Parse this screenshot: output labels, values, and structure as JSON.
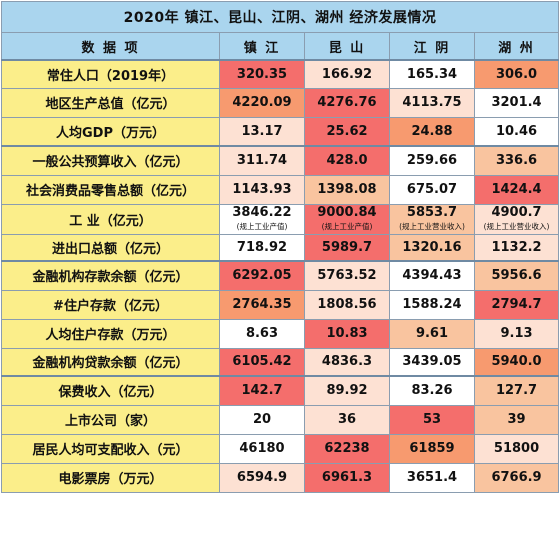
{
  "title": "2020年 镇江、昆山、江阴、湖州 经济发展情况",
  "header": {
    "item": "数 据 项",
    "cities": [
      "镇 江",
      "昆 山",
      "江 阴",
      "湖 州"
    ]
  },
  "colors": {
    "header_bg": "#aad5ee",
    "label_bg": "#fbee8a",
    "scale": [
      "#ffffff",
      "#fde1d3",
      "#f9c49f",
      "#f79a6f",
      "#f46e6c"
    ]
  },
  "rows": [
    {
      "label": "常住人口（2019年）",
      "values": [
        "320.35",
        "166.92",
        "165.34",
        "306.0"
      ],
      "shade": [
        4,
        1,
        0,
        3
      ]
    },
    {
      "label": "地区生产总值（亿元）",
      "values": [
        "4220.09",
        "4276.76",
        "4113.75",
        "3201.4"
      ],
      "shade": [
        3,
        4,
        1,
        0
      ]
    },
    {
      "label": "人均GDP（万元）",
      "values": [
        "13.17",
        "25.62",
        "24.88",
        "10.46"
      ],
      "shade": [
        1,
        4,
        3,
        0
      ]
    },
    {
      "label": "一般公共预算收入（亿元）",
      "values": [
        "311.74",
        "428.0",
        "259.66",
        "336.6"
      ],
      "shade": [
        1,
        4,
        0,
        2
      ]
    },
    {
      "label": "社会消费品零售总额（亿元）",
      "values": [
        "1143.93",
        "1398.08",
        "675.07",
        "1424.4"
      ],
      "shade": [
        1,
        2,
        0,
        4
      ]
    },
    {
      "label": "工 业（亿元）",
      "values": [
        "3846.22",
        "9000.84",
        "5853.7",
        "4900.7"
      ],
      "notes": [
        "(规上工业产值)",
        "(规上工业产值)",
        "(规上工业营业收入)",
        "(规上工业营业收入)"
      ],
      "shade": [
        0,
        4,
        2,
        1
      ]
    },
    {
      "label": "进出口总额（亿元）",
      "values": [
        "718.92",
        "5989.7",
        "1320.16",
        "1132.2"
      ],
      "shade": [
        0,
        4,
        2,
        1
      ]
    },
    {
      "label": "金融机构存款余额（亿元）",
      "values": [
        "6292.05",
        "5763.52",
        "4394.43",
        "5956.6"
      ],
      "shade": [
        4,
        1,
        0,
        2
      ]
    },
    {
      "label": "#住户存款（亿元）",
      "values": [
        "2764.35",
        "1808.56",
        "1588.24",
        "2794.7"
      ],
      "shade": [
        3,
        1,
        0,
        4
      ]
    },
    {
      "label": "人均住户存款（万元）",
      "values": [
        "8.63",
        "10.83",
        "9.61",
        "9.13"
      ],
      "shade": [
        0,
        4,
        2,
        1
      ]
    },
    {
      "label": "金融机构贷款余额（亿元）",
      "values": [
        "6105.42",
        "4836.3",
        "3439.05",
        "5940.0"
      ],
      "shade": [
        4,
        1,
        0,
        3
      ]
    },
    {
      "label": "保费收入（亿元）",
      "values": [
        "142.7",
        "89.92",
        "83.26",
        "127.7"
      ],
      "shade": [
        4,
        1,
        0,
        2
      ]
    },
    {
      "label": "上市公司（家）",
      "values": [
        "20",
        "36",
        "53",
        "39"
      ],
      "shade": [
        0,
        1,
        4,
        2
      ]
    },
    {
      "label": "居民人均可支配收入（元）",
      "values": [
        "46180",
        "62238",
        "61859",
        "51800"
      ],
      "shade": [
        0,
        4,
        3,
        1
      ]
    },
    {
      "label": "电影票房（万元）",
      "values": [
        "6594.9",
        "6961.3",
        "3651.4",
        "6766.9"
      ],
      "shade": [
        1,
        4,
        0,
        2
      ]
    }
  ]
}
